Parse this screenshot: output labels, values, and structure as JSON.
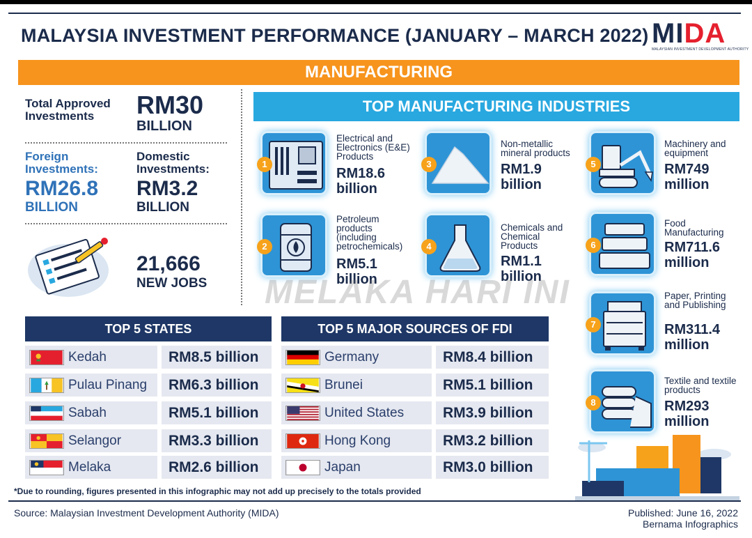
{
  "title": "MALAYSIA INVESTMENT PERFORMANCE (JANUARY – MARCH 2022)",
  "logo": {
    "text_main": "MI",
    "text_accent": "DA",
    "subtitle": "MALAYSIAN INVESTMENT DEVELOPMENT AUTHORITY"
  },
  "sector": "MANUFACTURING",
  "stats": {
    "total_label": "Total Approved Investments",
    "total_value": "RM30",
    "total_unit": "BILLION",
    "foreign_label": "Foreign Investments:",
    "foreign_value": "RM26.8",
    "foreign_unit": "BILLION",
    "domestic_label": "Domestic Investments:",
    "domestic_value": "RM3.2",
    "domestic_unit": "BILLION",
    "jobs_value": "21,666",
    "jobs_label": "NEW JOBS"
  },
  "industries": {
    "header": "TOP MANUFACTURING INDUSTRIES",
    "items": [
      {
        "num": "1",
        "name": "Electrical and Electronics (E&E) Products",
        "value": "RM18.6 billion",
        "icon": "circuit-board-icon"
      },
      {
        "num": "2",
        "name": "Petroleum products (including petrochemicals)",
        "value": "RM5.1 billion",
        "icon": "oil-barrel-icon"
      },
      {
        "num": "3",
        "name": "Non-metallic mineral products",
        "value": "RM1.9 billion",
        "icon": "mineral-pile-icon"
      },
      {
        "num": "4",
        "name": "Chemicals and Chemical Products",
        "value": "RM1.1 billion",
        "icon": "flask-icon"
      },
      {
        "num": "5",
        "name": "Machinery and equipment",
        "value": "RM749 million",
        "icon": "excavator-icon"
      },
      {
        "num": "6",
        "name": "Food Manufacturing",
        "value": "RM711.6 million",
        "icon": "food-containers-icon"
      },
      {
        "num": "7",
        "name": "Paper, Printing and Publishing",
        "value": "RM311.4 million",
        "icon": "printer-icon"
      },
      {
        "num": "8",
        "name": "Textile and textile products",
        "value": "RM293 million",
        "icon": "folded-textile-icon"
      }
    ]
  },
  "states": {
    "header": "TOP 5 STATES",
    "rows": [
      {
        "name": "Kedah",
        "value": "RM8.5 billion",
        "flag": "kedah-flag-icon"
      },
      {
        "name": "Pulau Pinang",
        "value": "RM6.3 billion",
        "flag": "penang-flag-icon"
      },
      {
        "name": "Sabah",
        "value": "RM5.1 billion",
        "flag": "sabah-flag-icon"
      },
      {
        "name": "Selangor",
        "value": "RM3.3 billion",
        "flag": "selangor-flag-icon"
      },
      {
        "name": "Melaka",
        "value": "RM2.6 billion",
        "flag": "melaka-flag-icon"
      }
    ]
  },
  "fdi": {
    "header": "TOP 5 MAJOR SOURCES OF FDI",
    "rows": [
      {
        "name": "Germany",
        "value": "RM8.4 billion",
        "flag": "germany-flag-icon"
      },
      {
        "name": "Brunei",
        "value": "RM5.1 billion",
        "flag": "brunei-flag-icon"
      },
      {
        "name": "United States",
        "value": "RM3.9 billion",
        "flag": "usa-flag-icon"
      },
      {
        "name": "Hong Kong",
        "value": "RM3.2 billion",
        "flag": "hong-kong-flag-icon"
      },
      {
        "name": "Japan",
        "value": "RM3.0 billion",
        "flag": "japan-flag-icon"
      }
    ]
  },
  "footnote": "*Due to rounding, figures presented in this infographic may not add up precisely to the totals provided",
  "source": "Source: Malaysian Investment Development Authority (MIDA)",
  "published_line1": "Published: June 16, 2022",
  "published_line2": "Bernama Infographics",
  "watermark": "MELAKA HARI INI",
  "colors": {
    "navy": "#1b2b4b",
    "orange": "#f7941d",
    "sky": "#29a8e0",
    "table_head": "#1e3766",
    "foreign_blue": "#2f72b8"
  }
}
